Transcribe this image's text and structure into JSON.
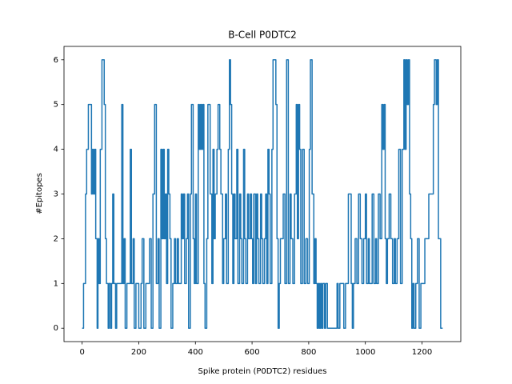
{
  "chart_data": {
    "type": "line",
    "title": "B-Cell P0DTC2",
    "xlabel": "Spike protein (P0DTC2) residues",
    "ylabel": "#Epitopes",
    "xlim": [
      -64,
      1337
    ],
    "ylim": [
      -0.3,
      6.3
    ],
    "xticks": [
      0,
      200,
      400,
      600,
      800,
      1000,
      1200
    ],
    "yticks": [
      0,
      1,
      2,
      3,
      4,
      5,
      6
    ],
    "grid": false,
    "series": [
      {
        "color": "#1f77b4",
        "x": [
          0,
          5,
          5,
          12,
          12,
          16,
          16,
          22,
          22,
          33,
          33,
          36,
          36,
          40,
          40,
          44,
          44,
          48,
          48,
          53,
          53,
          56,
          56,
          60,
          60,
          64,
          64,
          70,
          70,
          78,
          78,
          82,
          82,
          86,
          86,
          92,
          92,
          95,
          95,
          100,
          100,
          104,
          104,
          108,
          108,
          112,
          112,
          118,
          118,
          122,
          122,
          140,
          140,
          144,
          144,
          148,
          148,
          152,
          152,
          158,
          158,
          170,
          170,
          174,
          174,
          180,
          180,
          184,
          184,
          190,
          190,
          200,
          200,
          208,
          208,
          212,
          212,
          218,
          218,
          225,
          225,
          238,
          238,
          244,
          244,
          250,
          250,
          256,
          256,
          262,
          262,
          268,
          268,
          272,
          272,
          278,
          278,
          282,
          282,
          286,
          286,
          290,
          290,
          294,
          294,
          298,
          298,
          302,
          302,
          306,
          306,
          310,
          310,
          314,
          314,
          320,
          320,
          326,
          326,
          330,
          330,
          336,
          336,
          340,
          340,
          350,
          350,
          354,
          354,
          358,
          358,
          362,
          362,
          368,
          368,
          372,
          372,
          376,
          376,
          382,
          382,
          386,
          386,
          392,
          392,
          396,
          396,
          400,
          400,
          404,
          404,
          410,
          410,
          414,
          414,
          418,
          418,
          422,
          422,
          426,
          426,
          430,
          430,
          434,
          434,
          440,
          440,
          444,
          444,
          452,
          452,
          458,
          458,
          462,
          462,
          466,
          466,
          470,
          470,
          476,
          476,
          480,
          480,
          486,
          486,
          490,
          490,
          496,
          496,
          500,
          500,
          506,
          506,
          510,
          510,
          516,
          516,
          520,
          520,
          524,
          524,
          528,
          528,
          532,
          532,
          536,
          536,
          540,
          540,
          546,
          546,
          550,
          550,
          556,
          556,
          560,
          560,
          564,
          564,
          570,
          570,
          574,
          574,
          578,
          578,
          584,
          584,
          588,
          588,
          594,
          594,
          598,
          598,
          602,
          602,
          606,
          606,
          612,
          612,
          616,
          616,
          620,
          620,
          624,
          624,
          630,
          630,
          634,
          634,
          638,
          638,
          644,
          644,
          648,
          648,
          652,
          652,
          656,
          656,
          660,
          660,
          664,
          664,
          670,
          670,
          674,
          674,
          684,
          684,
          688,
          688,
          692,
          692,
          696,
          696,
          700,
          700,
          710,
          710,
          716,
          716,
          722,
          722,
          728,
          728,
          734,
          734,
          738,
          738,
          744,
          744,
          750,
          750,
          756,
          756,
          760,
          760,
          764,
          764,
          768,
          768,
          772,
          772,
          778,
          778,
          784,
          784,
          790,
          790,
          796,
          796,
          802,
          802,
          806,
          806,
          812,
          812,
          818,
          818,
          822,
          822,
          826,
          826,
          830,
          830,
          834,
          834,
          838,
          838,
          842,
          842,
          846,
          846,
          850,
          850,
          856,
          856,
          860,
          860,
          866,
          866,
          900,
          900,
          904,
          904,
          910,
          910,
          924,
          924,
          930,
          930,
          940,
          940,
          950,
          950,
          954,
          954,
          958,
          958,
          964,
          964,
          970,
          970,
          976,
          976,
          982,
          982,
          988,
          988,
          994,
          994,
          1000,
          1000,
          1004,
          1004,
          1010,
          1010,
          1014,
          1014,
          1024,
          1024,
          1030,
          1030,
          1036,
          1036,
          1040,
          1040,
          1046,
          1046,
          1052,
          1052,
          1058,
          1058,
          1062,
          1062,
          1066,
          1066,
          1070,
          1070,
          1074,
          1074,
          1078,
          1078,
          1084,
          1084,
          1090,
          1090,
          1096,
          1096,
          1102,
          1102,
          1106,
          1106,
          1112,
          1112,
          1118,
          1118,
          1124,
          1124,
          1130,
          1130,
          1136,
          1136,
          1140,
          1140,
          1144,
          1144,
          1148,
          1148,
          1152,
          1152,
          1156,
          1156,
          1160,
          1160,
          1164,
          1164,
          1168,
          1168,
          1172,
          1172,
          1178,
          1178,
          1184,
          1184,
          1190,
          1190,
          1196,
          1196,
          1210,
          1210,
          1224,
          1224,
          1240,
          1240,
          1244,
          1244,
          1250,
          1250,
          1254,
          1254,
          1258,
          1258,
          1266,
          1266,
          1273
        ],
        "values": [
          0,
          0,
          1,
          1,
          3,
          3,
          4,
          4,
          5,
          5,
          3,
          3,
          4,
          4,
          3,
          3,
          4,
          4,
          2,
          2,
          0,
          0,
          2,
          2,
          1,
          1,
          4,
          4,
          6,
          6,
          5,
          5,
          2,
          2,
          1,
          1,
          0,
          0,
          1,
          1,
          0,
          0,
          1,
          1,
          3,
          3,
          1,
          1,
          0,
          0,
          1,
          1,
          5,
          5,
          1,
          1,
          2,
          2,
          0,
          0,
          1,
          1,
          4,
          4,
          1,
          1,
          2,
          2,
          0,
          0,
          1,
          1,
          0,
          0,
          1,
          1,
          2,
          2,
          0,
          0,
          1,
          1,
          2,
          2,
          0,
          0,
          3,
          3,
          5,
          5,
          1,
          1,
          2,
          2,
          0,
          0,
          4,
          4,
          2,
          2,
          4,
          4,
          2,
          2,
          3,
          3,
          1,
          1,
          4,
          4,
          3,
          3,
          2,
          2,
          0,
          0,
          1,
          1,
          2,
          2,
          1,
          1,
          2,
          2,
          1,
          1,
          3,
          3,
          2,
          2,
          3,
          3,
          1,
          1,
          2,
          2,
          3,
          3,
          0,
          0,
          3,
          3,
          5,
          5,
          2,
          2,
          1,
          1,
          3,
          3,
          1,
          1,
          5,
          5,
          4,
          4,
          5,
          5,
          4,
          4,
          5,
          5,
          1,
          1,
          0,
          0,
          2,
          2,
          5,
          5,
          3,
          3,
          1,
          1,
          4,
          4,
          2,
          2,
          3,
          3,
          4,
          4,
          5,
          5,
          4,
          4,
          3,
          3,
          1,
          1,
          2,
          2,
          3,
          3,
          1,
          1,
          4,
          4,
          6,
          6,
          5,
          5,
          3,
          3,
          1,
          1,
          3,
          3,
          2,
          2,
          4,
          4,
          1,
          1,
          3,
          3,
          2,
          2,
          1,
          1,
          4,
          4,
          2,
          2,
          1,
          1,
          3,
          3,
          2,
          2,
          3,
          3,
          2,
          2,
          1,
          1,
          3,
          3,
          1,
          1,
          3,
          3,
          2,
          2,
          1,
          1,
          3,
          3,
          2,
          2,
          1,
          1,
          2,
          2,
          3,
          3,
          1,
          1,
          4,
          4,
          3,
          3,
          1,
          1,
          4,
          4,
          6,
          6,
          5,
          5,
          2,
          2,
          0,
          0,
          1,
          1,
          2,
          2,
          3,
          3,
          1,
          1,
          6,
          6,
          1,
          1,
          3,
          3,
          2,
          2,
          1,
          1,
          3,
          3,
          5,
          5,
          2,
          2,
          5,
          5,
          4,
          4,
          1,
          1,
          4,
          4,
          1,
          1,
          2,
          2,
          1,
          1,
          4,
          4,
          6,
          6,
          3,
          3,
          1,
          1,
          2,
          2,
          1,
          1,
          0,
          0,
          1,
          1,
          0,
          0,
          1,
          1,
          0,
          0,
          1,
          1,
          0,
          0,
          1,
          1,
          0,
          0,
          1,
          1,
          0,
          0,
          1,
          1,
          0,
          0,
          1,
          1,
          3,
          3,
          1,
          1,
          0,
          0,
          1,
          1,
          2,
          2,
          1,
          1,
          3,
          3,
          2,
          2,
          1,
          1,
          2,
          2,
          3,
          3,
          1,
          1,
          2,
          2,
          1,
          1,
          3,
          3,
          1,
          1,
          2,
          2,
          1,
          1,
          3,
          3,
          2,
          2,
          5,
          5,
          4,
          4,
          5,
          5,
          2,
          2,
          1,
          1,
          2,
          2,
          3,
          3,
          2,
          2,
          1,
          1,
          2,
          2,
          1,
          1,
          2,
          2,
          4,
          4,
          1,
          1,
          4,
          4,
          6,
          6,
          4,
          4,
          6,
          6,
          5,
          5,
          6,
          6,
          3,
          3,
          2,
          2,
          0,
          0,
          1,
          1,
          0,
          0,
          1,
          1,
          2,
          2,
          0,
          0,
          1,
          1,
          2,
          2,
          3,
          3,
          5,
          5,
          6,
          6,
          5,
          5,
          6,
          6,
          2,
          2,
          0,
          0
        ]
      }
    ]
  }
}
